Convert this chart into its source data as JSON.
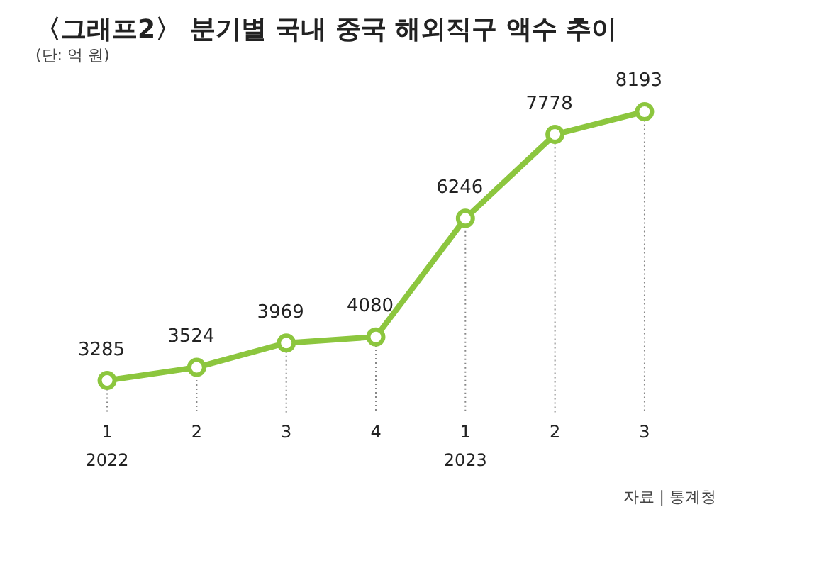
{
  "chart_data": {
    "type": "line",
    "title": "〈그래프2〉 분기별 국내 중국 해외직구 액수 추이",
    "subtitle": "(단: 억 원)",
    "categories": [
      "1\n2022",
      "2",
      "3",
      "4",
      "1\n2023",
      "2",
      "3"
    ],
    "series": [
      {
        "color": "#8cc63e",
        "values": [
          3285,
          3524,
          3969,
          4080,
          6246,
          7778,
          8193
        ]
      }
    ],
    "data_labels": true,
    "marker": "circle",
    "line_style": "solid",
    "grid": "x",
    "legend": false,
    "annotations": [
      "자료 | 통계청"
    ]
  }
}
